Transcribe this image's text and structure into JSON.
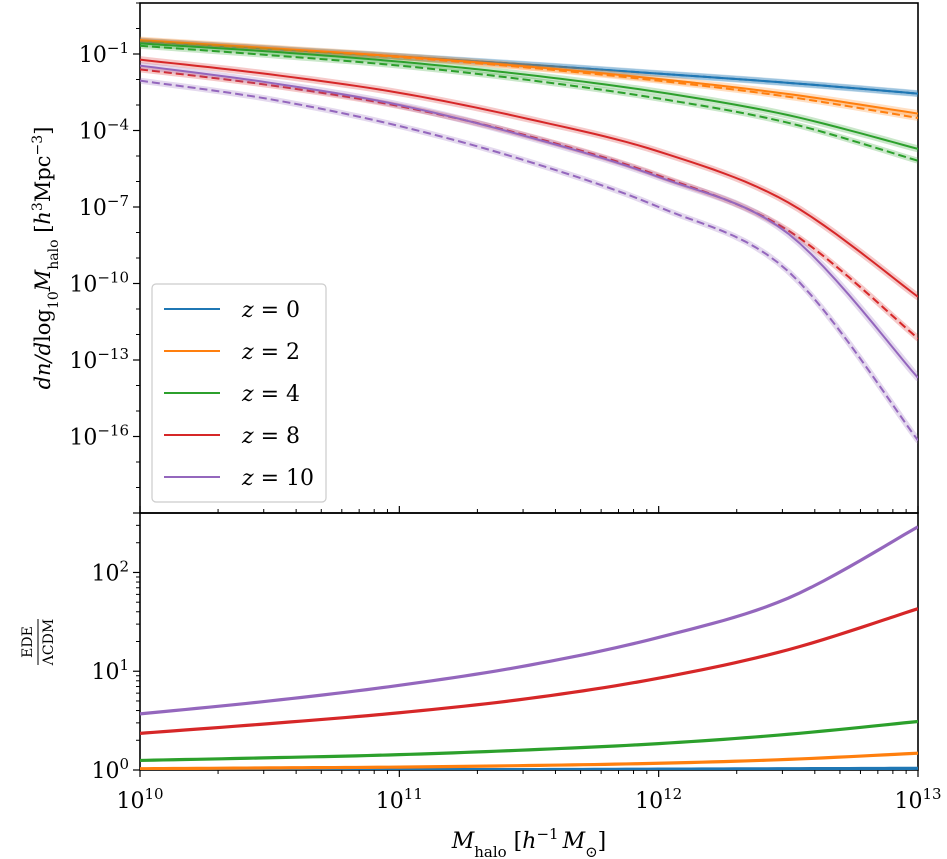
{
  "chart_data": [
    {
      "type": "line",
      "panel": "top",
      "xscale": "log",
      "yscale": "log",
      "xlim": [
        10000000000.0,
        10000000000000.0
      ],
      "ylim": [
        1e-19,
        10
      ],
      "ylabel": "dn/dlog10 Mhalo [h^3 Mpc^-3]",
      "x_ticks": [
        "10^10",
        "10^11",
        "10^12",
        "10^13"
      ],
      "y_ticks": [
        "10^-1",
        "10^-4",
        "10^-7",
        "10^-10",
        "10^-13",
        "10^-16"
      ],
      "legend": {
        "position": "bottom-left",
        "entries": [
          "z = 0",
          "z = 2",
          "z = 4",
          "z = 8",
          "z = 10"
        ]
      },
      "x": [
        10000000000.0,
        31600000000.0,
        100000000000.0,
        316000000000.0,
        1000000000000.0,
        3160000000000.0,
        10000000000000.0
      ],
      "series": [
        {
          "name": "z = 0",
          "color": "#1f77b4",
          "ede": [
            0.32,
            0.16,
            0.08,
            0.038,
            0.017,
            0.0074,
            0.0028
          ],
          "lcdm": [
            0.32,
            0.16,
            0.08,
            0.038,
            0.017,
            0.0074,
            0.0028
          ]
        },
        {
          "name": "z = 2",
          "color": "#ff7f0e",
          "ede": [
            0.35,
            0.17,
            0.08,
            0.032,
            0.0105,
            0.0027,
            0.00046
          ],
          "lcdm": [
            0.34,
            0.16,
            0.075,
            0.029,
            0.009,
            0.0021,
            0.00031
          ]
        },
        {
          "name": "z = 4",
          "color": "#2ca02c",
          "ede": [
            0.26,
            0.125,
            0.05,
            0.015,
            0.0032,
            0.0004,
            1.9e-05
          ],
          "lcdm": [
            0.21,
            0.09,
            0.035,
            0.0095,
            0.0018,
            0.0002,
            6.5e-06
          ]
        },
        {
          "name": "z = 8",
          "color": "#d62728",
          "ede": [
            0.06,
            0.016,
            0.003,
            0.00028,
            1.5e-05,
            1.5e-07,
            3e-11
          ],
          "lcdm": [
            0.025,
            0.006,
            0.0009,
            6e-05,
            1.7e-06,
            1.2e-08,
            7e-13
          ]
        },
        {
          "name": "z = 10",
          "color": "#9467bd",
          "ede": [
            0.035,
            0.0075,
            0.001,
            5.5e-05,
            1.5e-06,
            9e-09,
            2e-14
          ],
          "lcdm": [
            0.009,
            0.0017,
            0.00015,
            6e-06,
            1e-07,
            3e-10,
            7e-17
          ]
        }
      ]
    },
    {
      "type": "line",
      "panel": "bottom",
      "xscale": "log",
      "yscale": "log",
      "xlim": [
        10000000000.0,
        10000000000000.0
      ],
      "ylim": [
        1,
        400
      ],
      "xlabel": "Mhalo [h^-1 M_sun]",
      "ylabel": "EDE / ΛCDM",
      "x_ticks": [
        "10^10",
        "10^11",
        "10^12",
        "10^13"
      ],
      "y_ticks": [
        "10^0",
        "10^1",
        "10^2"
      ],
      "x": [
        10000000000.0,
        31600000000.0,
        100000000000.0,
        316000000000.0,
        1000000000000.0,
        3160000000000.0,
        10000000000000.0
      ],
      "series": [
        {
          "name": "z = 0",
          "color": "#1f77b4",
          "values": [
            1.0,
            1.0,
            1.01,
            1.01,
            1.02,
            1.03,
            1.04
          ]
        },
        {
          "name": "z = 2",
          "color": "#ff7f0e",
          "values": [
            1.03,
            1.05,
            1.07,
            1.11,
            1.17,
            1.28,
            1.48
          ]
        },
        {
          "name": "z = 4",
          "color": "#2ca02c",
          "values": [
            1.25,
            1.33,
            1.43,
            1.6,
            1.85,
            2.3,
            3.1
          ]
        },
        {
          "name": "z = 8",
          "color": "#d62728",
          "values": [
            2.35,
            2.95,
            3.8,
            5.3,
            8.5,
            16.5,
            43
          ]
        },
        {
          "name": "z = 10",
          "color": "#9467bd",
          "values": [
            3.7,
            5.0,
            7.2,
            11.5,
            22,
            55,
            290
          ]
        }
      ]
    }
  ],
  "labels": {
    "top_ylabel_italic": "dn",
    "top_ylabel_slash": "/",
    "top_ylabel_d": "d",
    "top_ylabel_log": "log",
    "top_ylabel_log_sub": "10",
    "top_ylabel_M": "M",
    "top_ylabel_M_sub": "halo",
    "top_ylabel_units_open": " [",
    "top_ylabel_h": "h",
    "top_ylabel_h_sup": "3",
    "top_ylabel_mpc": "Mpc",
    "top_ylabel_mpc_sup": "−3",
    "top_ylabel_close": "]",
    "bottom_ylabel_num": "EDE",
    "bottom_ylabel_den": "ΛCDM",
    "xlabel_M": "M",
    "xlabel_M_sub": "halo",
    "xlabel_open": "  [",
    "xlabel_h": "h",
    "xlabel_h_sup": "−1",
    "xlabel_Msun": "M",
    "xlabel_Msun_sub": "⊙",
    "xlabel_close": "]",
    "legend_z": "z",
    "legend_eq": " = ",
    "legend_values": [
      "0",
      "2",
      "4",
      "8",
      "10"
    ]
  }
}
